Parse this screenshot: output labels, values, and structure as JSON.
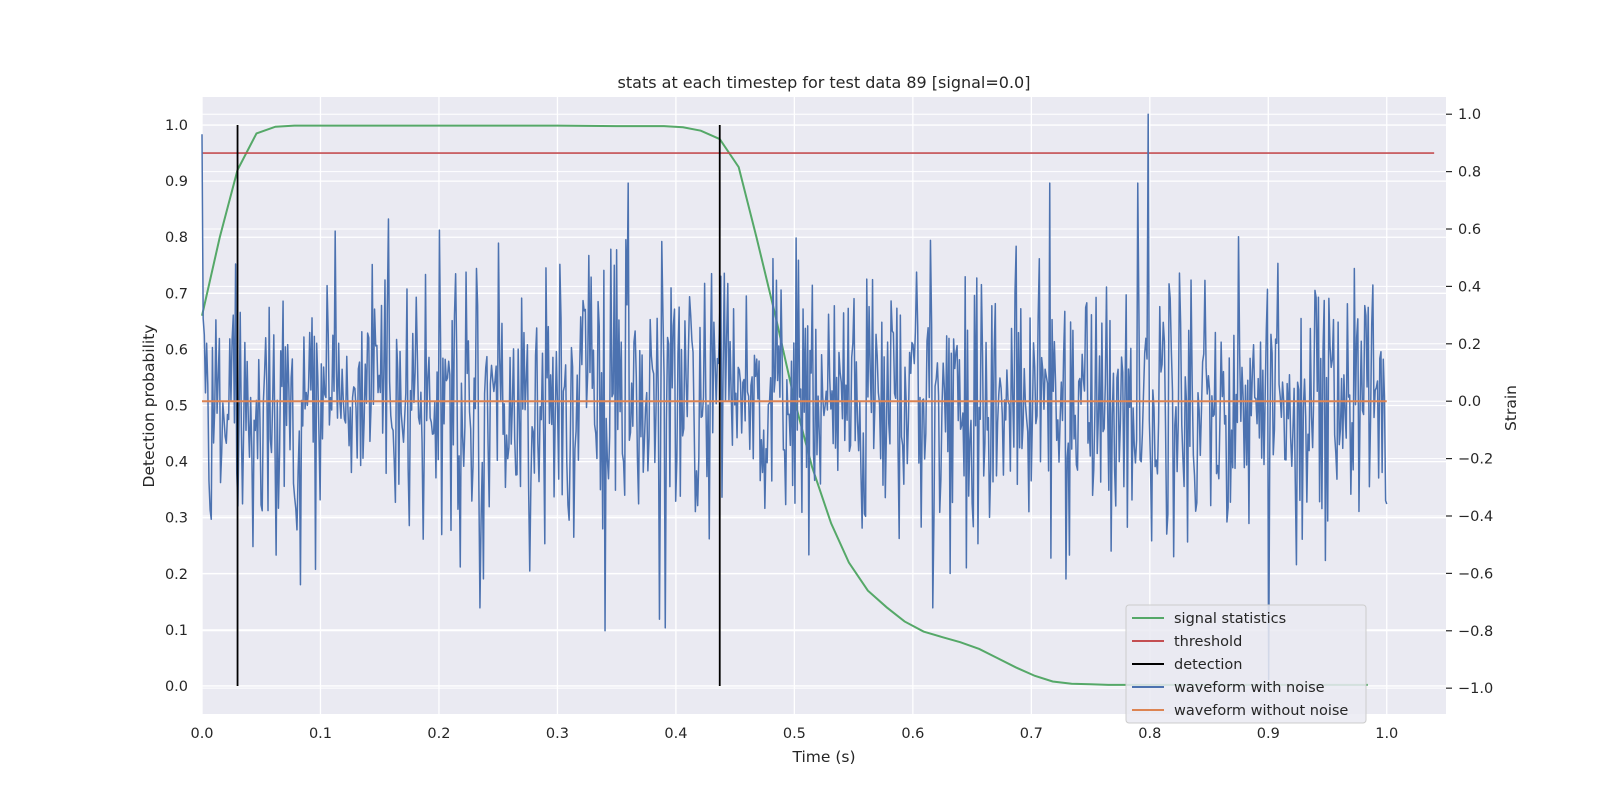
{
  "chart_data": {
    "type": "line",
    "title": "stats at each timestep for test data 89 [signal=0.0]",
    "xlabel": "Time (s)",
    "ylabel": "Detection probability",
    "ylabel_right": "Strain",
    "xlim": [
      0.0,
      1.05
    ],
    "ylim": [
      -0.05,
      1.05
    ],
    "ylim_right": [
      -1.09,
      1.06
    ],
    "xticks": [
      "0.0",
      "0.1",
      "0.2",
      "0.3",
      "0.4",
      "0.5",
      "0.6",
      "0.7",
      "0.8",
      "0.9",
      "1.0"
    ],
    "yticks": [
      "0.0",
      "0.1",
      "0.2",
      "0.3",
      "0.4",
      "0.5",
      "0.6",
      "0.7",
      "0.8",
      "0.9",
      "1.0"
    ],
    "yticks_right": [
      "−1.0",
      "−0.8",
      "−0.6",
      "−0.4",
      "−0.2",
      "0.0",
      "0.2",
      "0.4",
      "0.6",
      "0.8",
      "1.0"
    ],
    "grid": true,
    "legend_position": "lower-right",
    "colors": {
      "signal": "#55a868",
      "threshold": "#c44e52",
      "detection": "#000000",
      "noisy": "#4c72b0",
      "clean": "#dd8452",
      "axes_bg": "#eaeaf2",
      "grid": "#ffffff"
    },
    "series": [
      {
        "name": "signal statistics",
        "axis": "left",
        "x": [
          0.0,
          0.015,
          0.03,
          0.046,
          0.062,
          0.078,
          0.1,
          0.2,
          0.3,
          0.35,
          0.39,
          0.406,
          0.421,
          0.437,
          0.453,
          0.468,
          0.484,
          0.5,
          0.515,
          0.531,
          0.546,
          0.562,
          0.578,
          0.593,
          0.609,
          0.625,
          0.64,
          0.656,
          0.671,
          0.687,
          0.703,
          0.718,
          0.734,
          0.75,
          0.765,
          0.8,
          0.9,
          0.984
        ],
        "values": [
          0.66,
          0.8,
          0.92,
          0.985,
          0.997,
          0.999,
          0.999,
          0.999,
          0.999,
          0.998,
          0.998,
          0.996,
          0.99,
          0.975,
          0.925,
          0.8,
          0.66,
          0.51,
          0.39,
          0.29,
          0.22,
          0.17,
          0.14,
          0.115,
          0.097,
          0.087,
          0.078,
          0.066,
          0.05,
          0.033,
          0.018,
          0.008,
          0.004,
          0.003,
          0.002,
          0.002,
          0.002,
          0.002
        ]
      },
      {
        "name": "threshold",
        "axis": "left",
        "x": [
          0.0,
          1.04
        ],
        "values": [
          0.95,
          0.95
        ]
      },
      {
        "name": "detection",
        "axis": "left",
        "x_positions": [
          0.03,
          0.437
        ],
        "range": [
          0.0,
          1.0
        ]
      },
      {
        "name": "waveform with noise",
        "axis": "right",
        "x_range": [
          0.0,
          1.0
        ],
        "n_points": 1024,
        "y_range": [
          -0.97,
          1.0
        ],
        "noise_std": 0.24,
        "features": [
          {
            "x": 0.0,
            "value": 0.93
          },
          {
            "x": 0.34,
            "value": -0.8
          },
          {
            "x": 0.386,
            "value": -0.76
          },
          {
            "x": 0.391,
            "value": -0.79
          },
          {
            "x": 0.799,
            "value": 1.0
          },
          {
            "x": 0.9,
            "value": -0.97
          }
        ]
      },
      {
        "name": "waveform without noise",
        "axis": "right",
        "x": [
          0.0,
          1.0
        ],
        "values": [
          0.0,
          0.0
        ]
      }
    ]
  }
}
